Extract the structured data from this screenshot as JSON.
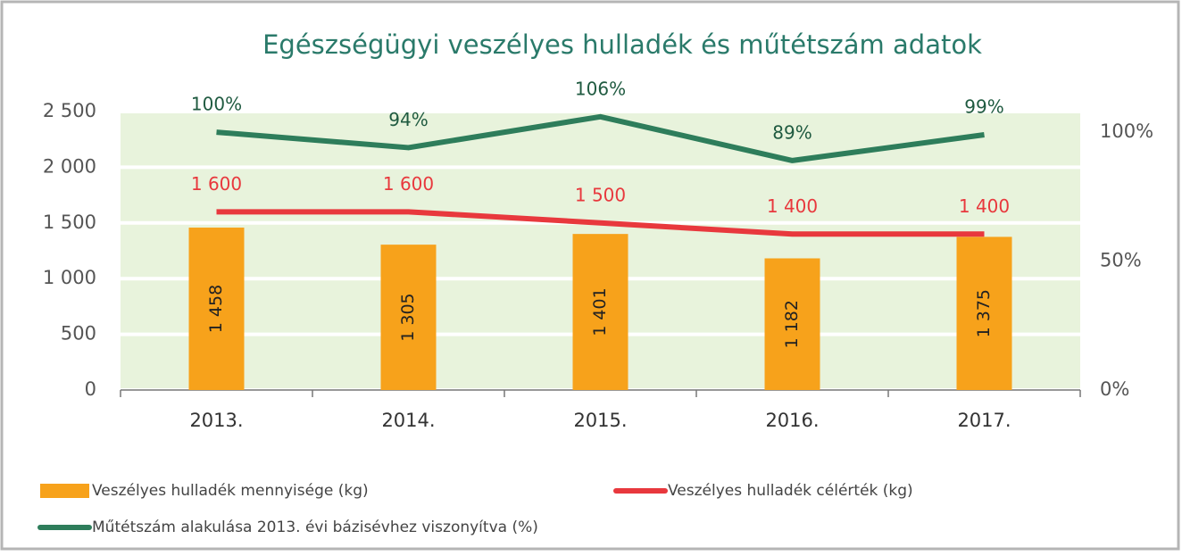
{
  "chart_data": {
    "type": "bar",
    "title": "Egészségügyi veszélyes hulladék és műtétszám adatok",
    "categories": [
      "2013.",
      "2014.",
      "2015.",
      "2016.",
      "2017."
    ],
    "series": [
      {
        "name": "Veszélyes hulladék mennyisége (kg)",
        "type": "bar",
        "color": "#f7a21b",
        "values": [
          1458,
          1305,
          1401,
          1182,
          1375
        ],
        "value_labels": [
          "1 458",
          "1 305",
          "1 401",
          "1 182",
          "1 375"
        ]
      },
      {
        "name": "Veszélyes hulladék célérték (kg)",
        "type": "line",
        "color": "#e8383d",
        "values": [
          1600,
          1600,
          1500,
          1400,
          1400
        ],
        "value_labels": [
          "1 600",
          "1 600",
          "1 500",
          "1 400",
          "1 400"
        ]
      },
      {
        "name": "Műtétszám alakulása 2013. évi bázisévhez viszonyítva (%)",
        "type": "line",
        "color": "#2e7d5b",
        "axis": "y2",
        "values": [
          100,
          94,
          106,
          89,
          99
        ],
        "value_labels": [
          "100%",
          "94%",
          "106%",
          "89%",
          "99%"
        ]
      }
    ],
    "ylim": [
      0,
      2500
    ],
    "yticks": [
      0,
      500,
      {
        "value": 1000,
        "label": "1 000"
      },
      {
        "value": 1500,
        "label": "1 500"
      },
      {
        "value": 2000,
        "label": "2 000"
      },
      {
        "value": 2500,
        "label": "2 500"
      }
    ],
    "y2lim": [
      0,
      108
    ],
    "y2ticks": [
      {
        "value": 0,
        "label": "0%"
      },
      {
        "value": 50,
        "label": "50%"
      },
      {
        "value": 100,
        "label": "100%"
      }
    ],
    "grid": true
  }
}
